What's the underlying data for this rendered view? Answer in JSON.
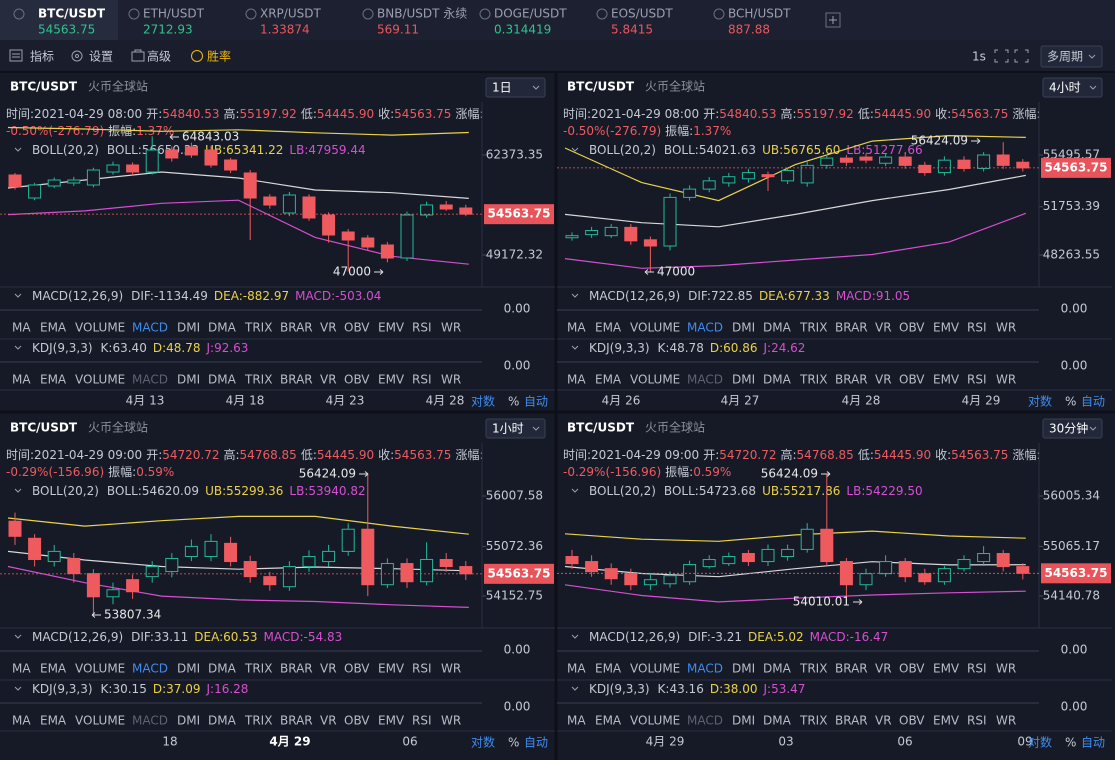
{
  "tabs": [
    {
      "symbol": "BTC/USDT",
      "price": 54563.75,
      "color": "#2fc48d"
    },
    {
      "symbol": "ETH/USDT",
      "price": 2712.93,
      "color": "#2fc48d"
    },
    {
      "symbol": "XRP/USDT",
      "price": 1.33874,
      "color": "#e8585d"
    },
    {
      "symbol": "BNB/USDT 永续",
      "price": 569.11,
      "color": "#e8585d"
    },
    {
      "symbol": "DOGE/USDT",
      "price": 0.314419,
      "color": "#2fc48d"
    },
    {
      "symbol": "EOS/USDT",
      "price": 5.8415,
      "color": "#e8585d"
    },
    {
      "symbol": "BCH/USDT",
      "price": 887.88,
      "color": "#e8585d"
    }
  ],
  "toolbar": {
    "items": [
      "指标",
      "设置",
      "高级",
      "胜率"
    ],
    "interval": "1s",
    "multi_period": "多周期"
  },
  "labels": {
    "time": "时间:",
    "open": "开:",
    "high": "高:",
    "low": "低:",
    "close": "收:",
    "change": "涨幅:",
    "amplitude": "振幅:",
    "boll_mid": "BOLL:",
    "ub": "UB:",
    "lb": "LB:",
    "dif": "DIF:",
    "dea": "DEA:",
    "macd": "MACD:",
    "k": "K:",
    "d": "D:",
    "j": "J:",
    "zero": "0.00"
  },
  "indicator_tabs": [
    "MA",
    "EMA",
    "VOLUME",
    "MACD",
    "DMI",
    "DMA",
    "TRIX",
    "BRAR",
    "VR",
    "OBV",
    "EMV",
    "RSI",
    "WR"
  ],
  "axis_buttons": [
    "对数",
    "%",
    "自动"
  ],
  "panels": [
    {
      "symbol": "BTC/USDT",
      "exchange": "火币全球站",
      "period": "1日",
      "time": "2021-04-29 08:00",
      "open": 54840.53,
      "high": 55197.92,
      "low": "54445.90",
      "close": 54563.75,
      "change": "-0.50%(-276.79)",
      "amplitude": "1.37%",
      "boll": {
        "label": "BOLL(20,2)",
        "mid": 56650.33,
        "ub": 65341.22,
        "lb": 47959.44
      },
      "macd": {
        "label": "MACD(12,26,9)",
        "dif": -1134.49,
        "dea": -882.97,
        "macd": -503.04
      },
      "kdj": {
        "label": "KDJ(9,3,3)",
        "k": "63.40",
        "d": 48.78,
        "j": 92.63
      },
      "price_ticks": [
        62373.35,
        49172.32
      ],
      "last_price": 54563.75,
      "high_mark": 64843.03,
      "low_mark": 47000,
      "x_labels": [
        "4月 13",
        "4月 18",
        "4月 23",
        "4月 28"
      ],
      "candles": [
        [
          59733,
          58149,
          60000,
          57800
        ],
        [
          56697,
          58413,
          58700,
          56400
        ],
        [
          58281,
          59073,
          59400,
          58000
        ],
        [
          58677,
          59073,
          59500,
          58300
        ],
        [
          58413,
          60393,
          60700,
          58100
        ],
        [
          60129,
          61053,
          61500,
          59800
        ],
        [
          61053,
          60129,
          61400,
          59700
        ],
        [
          60129,
          63033,
          64843.03,
          59800
        ],
        [
          63033,
          61977,
          63500,
          61500
        ],
        [
          63429,
          62373,
          64000,
          62000
        ],
        [
          63033,
          61053,
          63600,
          60700
        ],
        [
          61713,
          60393,
          62000,
          60000
        ],
        [
          60000,
          56697,
          60400,
          51150
        ],
        [
          56829,
          55773,
          57200,
          55300
        ],
        [
          54717,
          57093,
          57500,
          54300
        ],
        [
          56829,
          54057,
          57200,
          53700
        ],
        [
          54453,
          51813,
          54800,
          50800
        ],
        [
          52209,
          51153,
          52600,
          47000
        ],
        [
          51417,
          50229,
          51800,
          49800
        ],
        [
          50493,
          48777,
          50900,
          48200
        ],
        [
          48777,
          54453,
          54900,
          48400
        ],
        [
          54453,
          55773,
          56200,
          54100
        ],
        [
          55773,
          55245,
          56300,
          55000
        ],
        [
          55377,
          54563.75,
          55800,
          54300
        ]
      ],
      "boll_bands": {
        "upper": [
          66000,
          65800,
          65500,
          65700,
          65300,
          65000,
          65341.22
        ],
        "mid": [
          58017,
          59073,
          60129,
          59337,
          57753,
          57400,
          56650.33
        ],
        "lower": [
          54500,
          55000,
          56000,
          56400,
          51500,
          49000,
          47959.44
        ]
      }
    },
    {
      "symbol": "BTC/USDT",
      "exchange": "火币全球站",
      "period": "4小时",
      "time": "2021-04-29 08:00",
      "open": 54840.53,
      "high": 55197.92,
      "low": "54445.90",
      "close": 54563.75,
      "change": "-0.50%(-276.79)",
      "amplitude": "1.37%",
      "boll": {
        "label": "BOLL(20,2)",
        "mid": 54021.63,
        "ub": "56765.60",
        "lb": 51277.66
      },
      "macd": {
        "label": "MACD(12,26,9)",
        "dif": 722.85,
        "dea": 677.33,
        "macd": 91.05
      },
      "kdj": {
        "label": "KDJ(9,3,3)",
        "k": 48.78,
        "d": 60.86,
        "j": 24.62
      },
      "price_ticks": [
        55495.57,
        51753.39,
        48263.55
      ],
      "last_price": 54563.75,
      "high_mark": 56424.09,
      "low_mark": 47000,
      "x_labels": [
        "4月 26",
        "4月 27",
        "4月 28",
        "4月 29"
      ],
      "candles": [
        [
          49512,
          49662,
          49900,
          49300
        ],
        [
          49736,
          50036,
          50300,
          49500
        ],
        [
          49662,
          50260,
          50500,
          49500
        ],
        [
          50260,
          49288,
          50500,
          49000
        ],
        [
          49362,
          48914,
          49600,
          47000
        ],
        [
          48914,
          52429,
          52700,
          48600
        ],
        [
          52429,
          53028,
          53300,
          52200
        ],
        [
          53028,
          53626,
          53900,
          52800
        ],
        [
          53476,
          53925,
          54200,
          53200
        ],
        [
          53776,
          54224,
          54500,
          53500
        ],
        [
          54075,
          53925,
          54300,
          52900
        ],
        [
          53626,
          54374,
          54600,
          53400
        ],
        [
          53476,
          54748,
          55000,
          53200
        ],
        [
          54748,
          55272,
          55500,
          54500
        ],
        [
          55272,
          54972,
          55500,
          54700
        ],
        [
          55346,
          55122,
          55600,
          54900
        ],
        [
          54898,
          55346,
          55600,
          54700
        ],
        [
          55346,
          54748,
          55700,
          54500
        ],
        [
          54748,
          54224,
          55000,
          54000
        ],
        [
          54224,
          55122,
          55400,
          54000
        ],
        [
          55122,
          54524,
          55400,
          54300
        ],
        [
          54524,
          55496,
          55700,
          54300
        ],
        [
          55496,
          54748,
          56424.09,
          54500
        ],
        [
          54972,
          54563.75,
          55200,
          54300
        ]
      ],
      "boll_bands": {
        "upper": [
          56000,
          53500,
          52200,
          54800,
          56500,
          56900,
          56765.6
        ],
        "mid": [
          51200,
          50600,
          50300,
          51200,
          52200,
          53000,
          54021.63
        ],
        "lower": [
          48000,
          47300,
          47500,
          47900,
          48300,
          49200,
          51277.66
        ]
      }
    },
    {
      "symbol": "BTC/USDT",
      "exchange": "火币全球站",
      "period": "1小时",
      "time": "2021-04-29 09:00",
      "open": 54720.72,
      "high": 54768.85,
      "low": "54445.90",
      "close": 54563.75,
      "change": "-0.29%(-156.96)",
      "amplitude": "0.59%",
      "boll": {
        "label": "BOLL(20,2)",
        "mid": 54620.09,
        "ub": 55299.36,
        "lb": 53940.82
      },
      "macd": {
        "label": "MACD(12,26,9)",
        "dif": 33.11,
        "dea": 60.53,
        "macd": -54.83
      },
      "kdj": {
        "label": "KDJ(9,3,3)",
        "k": 30.15,
        "d": 37.09,
        "j": 16.28
      },
      "price_ticks": [
        56007.58,
        55072.36,
        54152.75
      ],
      "last_price": 54563.75,
      "high_mark": 56424.09,
      "low_mark": 53807.34,
      "x_labels": [
        "18",
        "4月 29",
        "06"
      ],
      "candles": [
        [
          55540,
          55260,
          55700,
          55100
        ],
        [
          55223,
          54830,
          55300,
          54700
        ],
        [
          54792,
          54980,
          55100,
          54700
        ],
        [
          54849,
          54568,
          54950,
          54400
        ],
        [
          54568,
          54138,
          54650,
          53807.34
        ],
        [
          54138,
          54269,
          54400,
          54000
        ],
        [
          54456,
          54232,
          54550,
          54100
        ],
        [
          54512,
          54699,
          54800,
          54400
        ],
        [
          54606,
          54849,
          54950,
          54500
        ],
        [
          54886,
          55073,
          55200,
          54800
        ],
        [
          54886,
          55166,
          55300,
          54800
        ],
        [
          55129,
          54792,
          55250,
          54700
        ],
        [
          54792,
          54512,
          54900,
          54400
        ],
        [
          54512,
          54362,
          54600,
          54250
        ],
        [
          54325,
          54699,
          54800,
          54250
        ],
        [
          54699,
          54886,
          55000,
          54600
        ],
        [
          54792,
          54980,
          55100,
          54700
        ],
        [
          54980,
          55391,
          55500,
          54900
        ],
        [
          55391,
          54362,
          56424.09,
          54150
        ],
        [
          54362,
          54755,
          54850,
          54300
        ],
        [
          54755,
          54418,
          54850,
          54300
        ],
        [
          54418,
          54830,
          55150,
          54350
        ],
        [
          54830,
          54699,
          54950,
          54600
        ],
        [
          54699,
          54563.75,
          54800,
          54450
        ]
      ],
      "boll_bands": {
        "upper": [
          55600,
          55450,
          55550,
          55630,
          55630,
          55450,
          55299.36
        ],
        "mid": [
          54980,
          54820,
          54700,
          54650,
          54690,
          54660,
          54620.09
        ],
        "lower": [
          54700,
          54400,
          54150,
          54080,
          54050,
          53990,
          53940.82
        ]
      }
    },
    {
      "symbol": "BTC/USDT",
      "exchange": "火币全球站",
      "period": "30分钟",
      "time": "2021-04-29 09:00",
      "open": 54720.72,
      "high": 54768.85,
      "low": "54445.90",
      "close": 54563.75,
      "change": "-0.29%(-156.96)",
      "amplitude": "0.59%",
      "boll": {
        "label": "BOLL(20,2)",
        "mid": 54723.68,
        "ub": 55217.86,
        "lb": "54229.50"
      },
      "macd": {
        "label": "MACD(12,26,9)",
        "dif": -3.21,
        "dea": 5.02,
        "macd": -16.47
      },
      "kdj": {
        "label": "KDJ(9,3,3)",
        "k": 43.16,
        "d": "38.00",
        "j": 53.47
      },
      "price_ticks": [
        56005.34,
        55065.17,
        54140.78
      ],
      "last_price": 54563.75,
      "high_mark": 56424.09,
      "low_mark": 54010.01,
      "x_labels": [
        "4月 29",
        "03",
        "06",
        "09"
      ],
      "candles": [
        [
          54877,
          54745,
          55000,
          54650
        ],
        [
          54783,
          54595,
          54900,
          54500
        ],
        [
          54651,
          54463,
          54750,
          54350
        ],
        [
          54557,
          54351,
          54650,
          54250
        ],
        [
          54351,
          54445,
          54550,
          54250
        ],
        [
          54369,
          54520,
          54600,
          54300
        ],
        [
          54407,
          54727,
          54800,
          54350
        ],
        [
          54689,
          54821,
          54900,
          54650
        ],
        [
          54745,
          54877,
          54950,
          54700
        ],
        [
          54933,
          54783,
          55000,
          54700
        ],
        [
          54783,
          55009,
          55100,
          54700
        ],
        [
          54877,
          55009,
          55100,
          54800
        ],
        [
          55009,
          55385,
          55500,
          54950
        ],
        [
          55385,
          54783,
          56424.09,
          54700
        ],
        [
          54783,
          54351,
          54850,
          54010.01
        ],
        [
          54351,
          54557,
          54650,
          54250
        ],
        [
          54557,
          54783,
          54900,
          54500
        ],
        [
          54783,
          54501,
          54850,
          54400
        ],
        [
          54557,
          54407,
          54650,
          54350
        ],
        [
          54407,
          54651,
          54700,
          54350
        ],
        [
          54651,
          54821,
          54900,
          54600
        ],
        [
          54783,
          54933,
          55070,
          54700
        ],
        [
          54933,
          54689,
          55000,
          54600
        ],
        [
          54689,
          54563.75,
          54750,
          54450
        ]
      ],
      "boll_bands": {
        "upper": [
          55300,
          55200,
          55160,
          55280,
          55350,
          55260,
          55217.86
        ],
        "mid": [
          54690,
          54560,
          54500,
          54650,
          54780,
          54720,
          54723.68
        ],
        "lower": [
          54350,
          54150,
          54030,
          54100,
          54160,
          54200,
          54229.5
        ]
      }
    }
  ]
}
